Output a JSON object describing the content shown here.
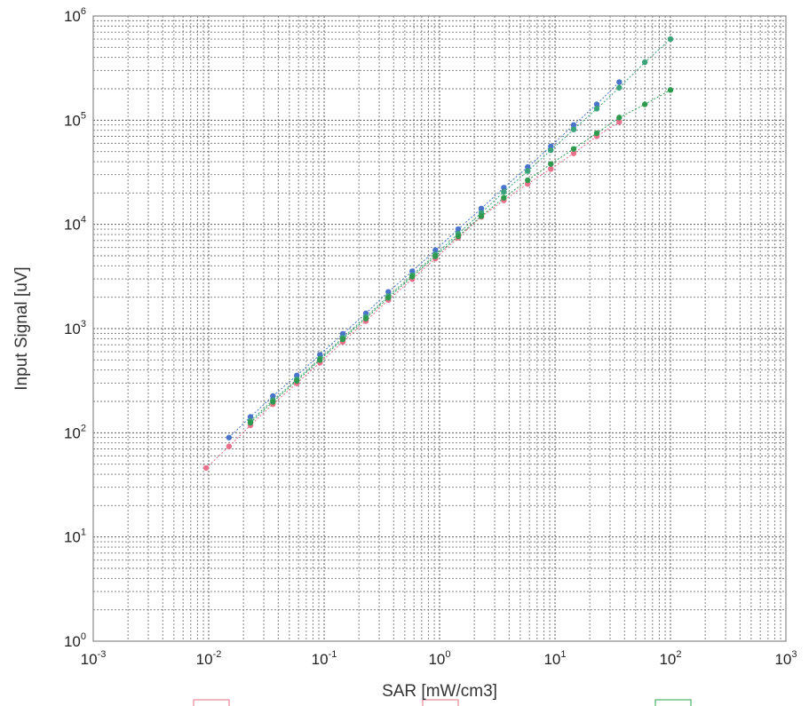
{
  "chart_data": {
    "type": "scatter",
    "xlabel": "SAR [mW/cm3]",
    "ylabel": "Input Signal [uV]",
    "xscale": "log",
    "yscale": "log",
    "xlim": [
      0.001,
      1000
    ],
    "ylim": [
      1,
      1000000
    ],
    "grid": true,
    "grid_style": "dotted",
    "x_ticks": [
      {
        "base": "10",
        "exp": "-3",
        "value": 0.001
      },
      {
        "base": "10",
        "exp": "-2",
        "value": 0.01
      },
      {
        "base": "10",
        "exp": "-1",
        "value": 0.1
      },
      {
        "base": "10",
        "exp": "0",
        "value": 1
      },
      {
        "base": "10",
        "exp": "1",
        "value": 10
      },
      {
        "base": "10",
        "exp": "2",
        "value": 100
      },
      {
        "base": "10",
        "exp": "3",
        "value": 1000
      }
    ],
    "y_ticks": [
      {
        "base": "10",
        "exp": "0",
        "value": 1
      },
      {
        "base": "10",
        "exp": "1",
        "value": 10
      },
      {
        "base": "10",
        "exp": "2",
        "value": 100
      },
      {
        "base": "10",
        "exp": "3",
        "value": 1000
      },
      {
        "base": "10",
        "exp": "4",
        "value": 10000
      },
      {
        "base": "10",
        "exp": "5",
        "value": 100000
      },
      {
        "base": "10",
        "exp": "6",
        "value": 1000000
      }
    ],
    "legend_swatches": [
      "#e8889a",
      "#e8889a",
      "#4fb06a"
    ],
    "series": [
      {
        "color": "#4a74c9",
        "x": [
          0.015,
          0.023,
          0.036,
          0.058,
          0.092,
          0.145,
          0.23,
          0.36,
          0.58,
          0.92,
          1.45,
          2.3,
          3.6,
          5.8,
          9.2,
          14.5,
          23,
          36
        ],
        "y": [
          90,
          142,
          225,
          355,
          560,
          890,
          1400,
          2250,
          3550,
          5650,
          9000,
          14200,
          22500,
          35500,
          56000,
          90000,
          142000,
          232000
        ]
      },
      {
        "color": "#3aa37a",
        "x": [
          0.023,
          0.036,
          0.058,
          0.092,
          0.145,
          0.23,
          0.36,
          0.58,
          0.92,
          1.45,
          2.3,
          3.6,
          5.8,
          9.2,
          14.5,
          23,
          36,
          60,
          100
        ],
        "y": [
          130,
          205,
          325,
          515,
          815,
          1290,
          2050,
          3250,
          5150,
          8150,
          12900,
          20500,
          32500,
          51500,
          81500,
          129000,
          205000,
          360000,
          600000
        ]
      },
      {
        "color": "#e8708a",
        "x": [
          0.0095,
          0.015,
          0.023,
          0.036,
          0.058,
          0.092,
          0.145,
          0.23,
          0.36,
          0.58,
          0.92,
          1.45,
          2.3,
          3.6,
          5.8,
          9.2,
          14.5,
          23,
          36
        ],
        "y": [
          46,
          74,
          118,
          188,
          298,
          470,
          745,
          1180,
          1880,
          2980,
          4700,
          7450,
          11800,
          17000,
          24500,
          34000,
          48000,
          70000,
          96000
        ]
      },
      {
        "color": "#2f9a4e",
        "x": [
          0.023,
          0.036,
          0.058,
          0.092,
          0.145,
          0.23,
          0.36,
          0.58,
          0.92,
          1.45,
          2.3,
          3.6,
          5.8,
          9.2,
          14.5,
          23,
          36,
          60,
          100
        ],
        "y": [
          125,
          198,
          315,
          500,
          790,
          1250,
          1980,
          3150,
          4950,
          7700,
          12000,
          18000,
          26500,
          38000,
          53000,
          75000,
          106000,
          142000,
          195000
        ]
      }
    ]
  }
}
